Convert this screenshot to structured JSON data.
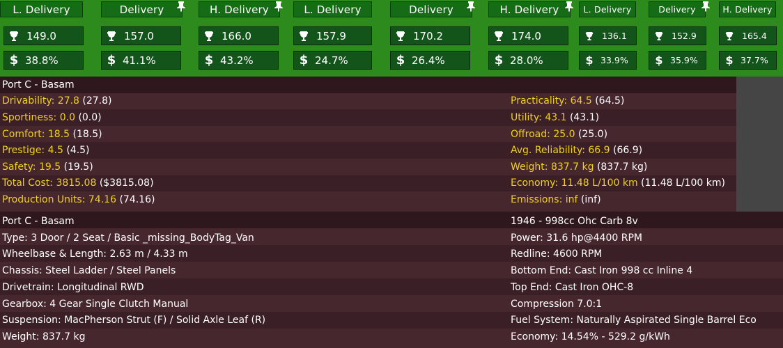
{
  "tabs": [
    {
      "label": "L. Delivery",
      "pinned": false
    },
    {
      "label": "Delivery",
      "pinned": true
    },
    {
      "label": "H. Delivery",
      "pinned": true
    },
    {
      "label": "L. Delivery",
      "pinned": false
    },
    {
      "label": "Delivery",
      "pinned": true
    },
    {
      "label": "H. Delivery",
      "pinned": true
    },
    {
      "label": "L. Delivery",
      "pinned": false
    },
    {
      "label": "Delivery",
      "pinned": true
    },
    {
      "label": "H. Delivery",
      "pinned": false
    }
  ],
  "scores": [
    "149.0",
    "157.0",
    "166.0",
    "157.9",
    "170.2",
    "174.0",
    "136.1",
    "152.9",
    "165.4"
  ],
  "costs": [
    "38.8%",
    "41.1%",
    "43.2%",
    "24.7%",
    "26.4%",
    "28.0%",
    "33.9%",
    "35.9%",
    "37.7%"
  ],
  "stats": {
    "title": "Port C - Basam",
    "left": [
      {
        "label": "Drivability:",
        "value": "27.8",
        "extra": "(27.8)"
      },
      {
        "label": "Sportiness:",
        "value": "0.0",
        "extra": "(0.0)"
      },
      {
        "label": "Comfort:",
        "value": "18.5",
        "extra": "(18.5)"
      },
      {
        "label": "Prestige:",
        "value": "4.5",
        "extra": "(4.5)"
      },
      {
        "label": "Safety:",
        "value": "19.5",
        "extra": "(19.5)"
      },
      {
        "label": "Total Cost:",
        "value": "3815.08",
        "extra": "($3815.08)"
      },
      {
        "label": "Production Units:",
        "value": "74.16",
        "extra": "(74.16)"
      }
    ],
    "right": [
      {
        "label": "Practicality:",
        "value": "64.5",
        "extra": "(64.5)"
      },
      {
        "label": "Utility:",
        "value": "43.1",
        "extra": "(43.1)"
      },
      {
        "label": "Offroad:",
        "value": "25.0",
        "extra": "(25.0)"
      },
      {
        "label": "Avg. Reliability:",
        "value": "66.9",
        "extra": "(66.9)"
      },
      {
        "label": "Weight:",
        "value": "837.7 kg",
        "extra": "(837.7 kg)"
      },
      {
        "label": "Economy:",
        "value": "11.48 L/100 km",
        "extra": "(11.48 L/100 km)"
      },
      {
        "label": "Emissions:",
        "value": "inf",
        "extra": "(inf)"
      }
    ]
  },
  "details": {
    "left": [
      "Port C - Basam",
      "Type: 3 Door / 2 Seat / Basic _missing_BodyTag_Van",
      "Wheelbase & Length: 2.63 m / 4.33 m",
      "Chassis: Steel Ladder / Steel Panels",
      "Drivetrain: Longitudinal RWD",
      "Gearbox: 4 Gear Single Clutch Manual",
      "Suspension: MacPherson Strut (F) / Solid Axle Leaf (R)",
      "Weight: 837.7 kg"
    ],
    "right": [
      "1946 - 998cc Ohc Carb 8v",
      "Power: 31.6 hp@4400 RPM",
      "Redline: 4600 RPM",
      "Bottom End: Cast Iron 998 cc Inline 4",
      "Top End: Cast Iron OHC-8",
      "Compression 7.0:1",
      "Fuel System: Naturally Aspirated Single Barrel Eco",
      "Economy: 14.54% - 529.2 g/kWh"
    ]
  },
  "colors": {
    "label": "#f0d020",
    "accent_green": "#2d8a1d",
    "panel": "#3a2026"
  }
}
